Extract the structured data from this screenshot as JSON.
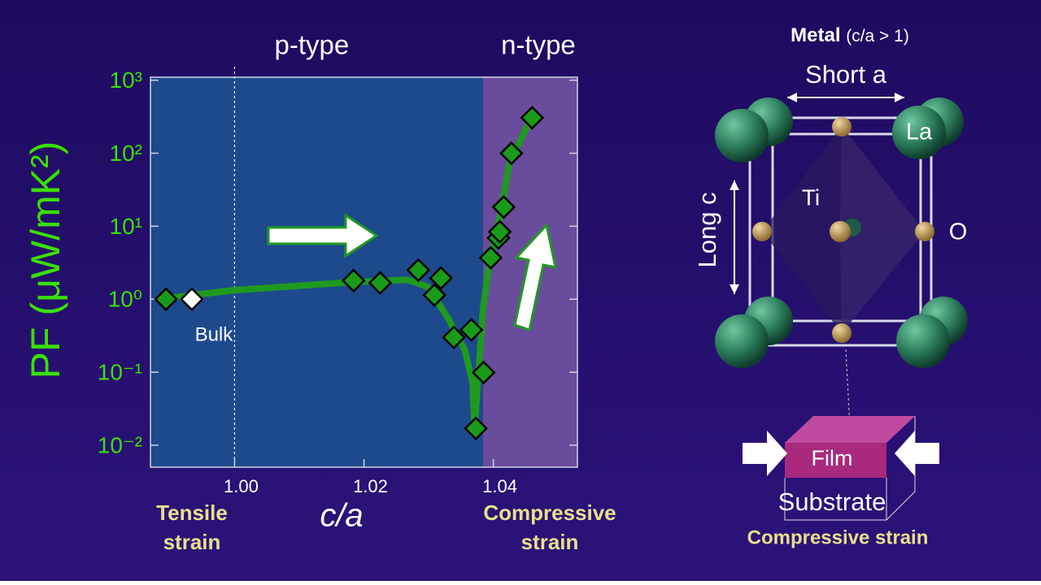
{
  "chart_data": {
    "type": "scatter",
    "xlabel": "c/a",
    "ylabel": "PF (μW/mK²)",
    "xlim": [
      0.987,
      1.053
    ],
    "ylim": [
      0.005,
      1100
    ],
    "yscale": "log",
    "xticks": [
      {
        "value": 1.0,
        "label": "1.00"
      },
      1.02,
      1.04
    ],
    "yticks": [
      {
        "value": 0.01,
        "label": "10⁻²"
      },
      {
        "value": 0.1,
        "label": "10⁻¹"
      },
      {
        "value": 1,
        "label": "10⁰"
      },
      {
        "value": 10,
        "label": "10¹"
      },
      {
        "value": 100,
        "label": "10²"
      },
      {
        "value": 1000,
        "label": "10³"
      }
    ],
    "regions": [
      {
        "xlim": [
          0.987,
          1.0384
        ],
        "color": "#1d4a8c",
        "label": "p-type"
      },
      {
        "xlim": [
          1.0384,
          1.053
        ],
        "color": "#6a4c9c",
        "label": "n-type"
      }
    ],
    "vline": 1.0,
    "series": [
      {
        "style": "line",
        "color": "#1f9a1f",
        "x": [
          0.9894,
          1.0,
          1.0184,
          1.0267,
          1.0299,
          1.033,
          1.0356,
          1.0368,
          1.0371,
          1.0376,
          1.0384,
          1.0394,
          1.0409,
          1.0425,
          1.0459
        ],
        "values": [
          1.03,
          1.33,
          1.72,
          1.85,
          1.47,
          0.55,
          0.2,
          0.071,
          0.017,
          0.071,
          0.72,
          3.3,
          12.1,
          73,
          308
        ]
      },
      {
        "style": "marker",
        "color": "#1a9a1a",
        "x": [
          0.9894,
          1.0184,
          1.0225,
          1.0284,
          1.0319,
          1.0309,
          1.0339,
          1.0366,
          1.0385,
          1.0373,
          1.0396,
          1.0408,
          1.041,
          1.0416,
          1.0428,
          1.046
        ],
        "values": [
          1.0,
          1.8,
          1.67,
          2.5,
          1.95,
          1.14,
          0.3,
          0.38,
          0.099,
          0.017,
          3.7,
          6.9,
          8.4,
          18.3,
          99.7,
          306
        ]
      },
      {
        "style": "marker",
        "color": "#ffffff",
        "label": "Bulk",
        "x": [
          0.9934
        ],
        "values": [
          1.0
        ]
      }
    ],
    "strain_labels": {
      "left": [
        "Tensile",
        "strain"
      ],
      "right": [
        "Compressive",
        "strain"
      ]
    }
  },
  "diagram": {
    "title": "Metal",
    "title_note": "(c/a > 1)",
    "short_a": "Short a",
    "long_c": "Long c",
    "la": "La",
    "ti": "Ti",
    "o": "O",
    "film": "Film",
    "substrate": "Substrate",
    "caption": "Compressive strain"
  }
}
